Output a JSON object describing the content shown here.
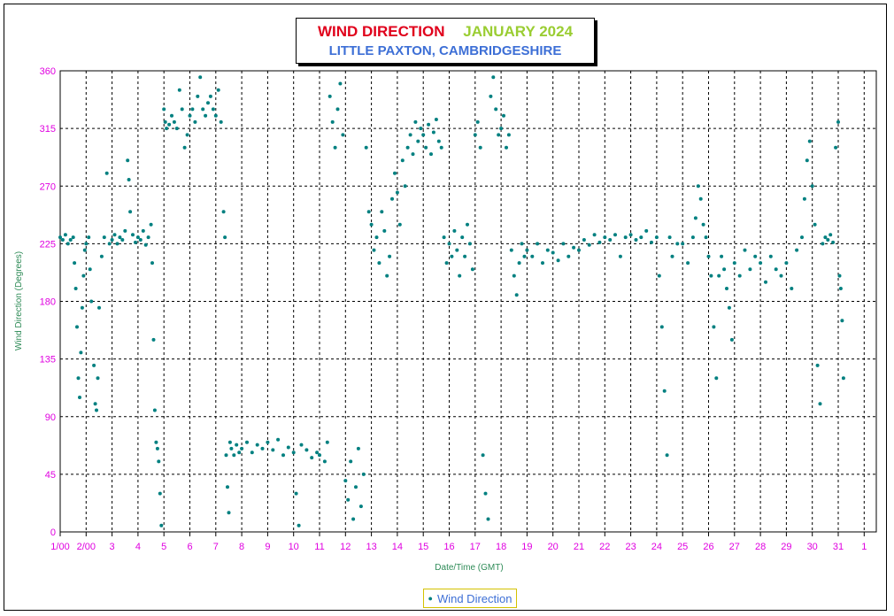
{
  "title": {
    "main": "WIND DIRECTION",
    "date": "JANUARY  2024",
    "subtitle": "LITTLE PAXTON, CAMBRIDGESHIRE"
  },
  "legend": {
    "label": "Wind Direction"
  },
  "colors": {
    "series": "#008080",
    "tick_labels": "#e000e0",
    "axis_titles": "#2e8b57",
    "title_main": "#e0001b",
    "title_date": "#9acd32",
    "subtitle": "#3d6fd6",
    "grid": "#000000"
  },
  "chart_data": {
    "type": "scatter",
    "title": "WIND DIRECTION   JANUARY  2024",
    "subtitle": "LITTLE PAXTON, CAMBRIDGESHIRE",
    "xlabel": "Date/Time (GMT)",
    "ylabel": "Wind Direction (Degrees)",
    "ylim": [
      0,
      360
    ],
    "yticks": [
      0,
      45,
      90,
      135,
      180,
      225,
      270,
      315,
      360
    ],
    "xlim": [
      1,
      32.3
    ],
    "xticks": [
      "1/00",
      "2/00",
      "3",
      "4",
      "5",
      "6",
      "7",
      "8",
      "9",
      "10",
      "11",
      "12",
      "13",
      "14",
      "15",
      "16",
      "17",
      "18",
      "19",
      "20",
      "21",
      "22",
      "23",
      "24",
      "25",
      "26",
      "27",
      "28",
      "29",
      "30",
      "31",
      "1"
    ],
    "grid": true,
    "legend_position": "bottom-center",
    "series": [
      {
        "name": "Wind Direction",
        "note": "x values are days of January 2024 (day + fraction); y values are degrees",
        "points": [
          [
            1.0,
            230
          ],
          [
            1.1,
            228
          ],
          [
            1.2,
            232
          ],
          [
            1.3,
            225
          ],
          [
            1.4,
            228
          ],
          [
            1.5,
            230
          ],
          [
            1.55,
            210
          ],
          [
            1.6,
            190
          ],
          [
            1.65,
            160
          ],
          [
            1.7,
            120
          ],
          [
            1.75,
            105
          ],
          [
            1.8,
            140
          ],
          [
            1.85,
            175
          ],
          [
            1.9,
            200
          ],
          [
            1.95,
            220
          ],
          [
            2.0,
            225
          ],
          [
            2.1,
            230
          ],
          [
            2.15,
            205
          ],
          [
            2.2,
            180
          ],
          [
            2.3,
            130
          ],
          [
            2.35,
            100
          ],
          [
            2.4,
            95
          ],
          [
            2.45,
            120
          ],
          [
            2.5,
            175
          ],
          [
            2.6,
            215
          ],
          [
            2.7,
            230
          ],
          [
            2.8,
            280
          ],
          [
            2.9,
            225
          ],
          [
            3.0,
            228
          ],
          [
            3.1,
            232
          ],
          [
            3.2,
            225
          ],
          [
            3.3,
            230
          ],
          [
            3.4,
            228
          ],
          [
            3.5,
            235
          ],
          [
            3.6,
            290
          ],
          [
            3.65,
            275
          ],
          [
            3.7,
            250
          ],
          [
            3.8,
            232
          ],
          [
            3.9,
            226
          ],
          [
            4.0,
            230
          ],
          [
            4.1,
            228
          ],
          [
            4.2,
            235
          ],
          [
            4.3,
            224
          ],
          [
            4.4,
            230
          ],
          [
            4.5,
            240
          ],
          [
            4.55,
            210
          ],
          [
            4.6,
            150
          ],
          [
            4.65,
            95
          ],
          [
            4.7,
            70
          ],
          [
            4.75,
            65
          ],
          [
            4.8,
            55
          ],
          [
            4.85,
            30
          ],
          [
            4.9,
            5
          ],
          [
            5.0,
            330
          ],
          [
            5.05,
            320
          ],
          [
            5.1,
            315
          ],
          [
            5.2,
            318
          ],
          [
            5.3,
            325
          ],
          [
            5.4,
            320
          ],
          [
            5.5,
            315
          ],
          [
            5.6,
            345
          ],
          [
            5.7,
            330
          ],
          [
            5.8,
            300
          ],
          [
            5.9,
            310
          ],
          [
            6.0,
            325
          ],
          [
            6.1,
            330
          ],
          [
            6.2,
            320
          ],
          [
            6.3,
            340
          ],
          [
            6.4,
            355
          ],
          [
            6.5,
            330
          ],
          [
            6.6,
            325
          ],
          [
            6.7,
            335
          ],
          [
            6.8,
            340
          ],
          [
            6.9,
            330
          ],
          [
            7.0,
            325
          ],
          [
            7.1,
            345
          ],
          [
            7.2,
            320
          ],
          [
            7.3,
            250
          ],
          [
            7.35,
            230
          ],
          [
            7.4,
            60
          ],
          [
            7.45,
            35
          ],
          [
            7.5,
            15
          ],
          [
            7.55,
            70
          ],
          [
            7.6,
            65
          ],
          [
            7.7,
            60
          ],
          [
            7.8,
            68
          ],
          [
            7.9,
            62
          ],
          [
            8.0,
            65
          ],
          [
            8.2,
            70
          ],
          [
            8.4,
            62
          ],
          [
            8.6,
            68
          ],
          [
            8.8,
            65
          ],
          [
            9.0,
            70
          ],
          [
            9.2,
            64
          ],
          [
            9.4,
            72
          ],
          [
            9.6,
            60
          ],
          [
            9.8,
            66
          ],
          [
            10.0,
            62
          ],
          [
            10.1,
            30
          ],
          [
            10.2,
            5
          ],
          [
            10.3,
            68
          ],
          [
            10.5,
            64
          ],
          [
            10.7,
            58
          ],
          [
            10.9,
            62
          ],
          [
            11.0,
            60
          ],
          [
            11.2,
            55
          ],
          [
            11.3,
            70
          ],
          [
            11.4,
            340
          ],
          [
            11.5,
            320
          ],
          [
            11.6,
            300
          ],
          [
            11.7,
            330
          ],
          [
            11.8,
            350
          ],
          [
            11.9,
            310
          ],
          [
            12.0,
            40
          ],
          [
            12.1,
            25
          ],
          [
            12.2,
            55
          ],
          [
            12.3,
            10
          ],
          [
            12.4,
            35
          ],
          [
            12.5,
            65
          ],
          [
            12.6,
            20
          ],
          [
            12.7,
            45
          ],
          [
            12.8,
            300
          ],
          [
            12.9,
            250
          ],
          [
            13.0,
            240
          ],
          [
            13.1,
            220
          ],
          [
            13.2,
            230
          ],
          [
            13.3,
            210
          ],
          [
            13.4,
            250
          ],
          [
            13.5,
            235
          ],
          [
            13.6,
            200
          ],
          [
            13.7,
            215
          ],
          [
            13.8,
            260
          ],
          [
            13.9,
            280
          ],
          [
            14.0,
            265
          ],
          [
            14.1,
            240
          ],
          [
            14.2,
            290
          ],
          [
            14.3,
            270
          ],
          [
            14.4,
            300
          ],
          [
            14.5,
            310
          ],
          [
            14.6,
            295
          ],
          [
            14.7,
            320
          ],
          [
            14.8,
            305
          ],
          [
            14.9,
            315
          ],
          [
            15.0,
            310
          ],
          [
            15.1,
            300
          ],
          [
            15.2,
            318
          ],
          [
            15.3,
            295
          ],
          [
            15.4,
            312
          ],
          [
            15.5,
            322
          ],
          [
            15.6,
            305
          ],
          [
            15.7,
            300
          ],
          [
            15.8,
            230
          ],
          [
            15.9,
            210
          ],
          [
            16.0,
            225
          ],
          [
            16.1,
            215
          ],
          [
            16.2,
            235
          ],
          [
            16.3,
            220
          ],
          [
            16.4,
            200
          ],
          [
            16.5,
            230
          ],
          [
            16.6,
            215
          ],
          [
            16.7,
            240
          ],
          [
            16.8,
            225
          ],
          [
            16.9,
            205
          ],
          [
            17.0,
            310
          ],
          [
            17.1,
            320
          ],
          [
            17.2,
            300
          ],
          [
            17.3,
            60
          ],
          [
            17.4,
            30
          ],
          [
            17.5,
            10
          ],
          [
            17.6,
            340
          ],
          [
            17.7,
            355
          ],
          [
            17.8,
            330
          ],
          [
            17.9,
            310
          ],
          [
            18.0,
            315
          ],
          [
            18.1,
            325
          ],
          [
            18.2,
            300
          ],
          [
            18.3,
            310
          ],
          [
            18.4,
            220
          ],
          [
            18.5,
            200
          ],
          [
            18.6,
            185
          ],
          [
            18.7,
            210
          ],
          [
            18.8,
            225
          ],
          [
            18.9,
            215
          ],
          [
            19.0,
            220
          ],
          [
            19.2,
            215
          ],
          [
            19.4,
            225
          ],
          [
            19.6,
            210
          ],
          [
            19.8,
            220
          ],
          [
            20.0,
            218
          ],
          [
            20.2,
            212
          ],
          [
            20.4,
            225
          ],
          [
            20.6,
            215
          ],
          [
            20.8,
            222
          ],
          [
            21.0,
            220
          ],
          [
            21.2,
            228
          ],
          [
            21.4,
            224
          ],
          [
            21.6,
            232
          ],
          [
            21.8,
            226
          ],
          [
            22.0,
            230
          ],
          [
            22.2,
            228
          ],
          [
            22.4,
            232
          ],
          [
            22.6,
            215
          ],
          [
            22.8,
            230
          ],
          [
            23.0,
            232
          ],
          [
            23.2,
            228
          ],
          [
            23.4,
            230
          ],
          [
            23.6,
            235
          ],
          [
            23.8,
            226
          ],
          [
            24.0,
            230
          ],
          [
            24.1,
            200
          ],
          [
            24.2,
            160
          ],
          [
            24.3,
            110
          ],
          [
            24.4,
            60
          ],
          [
            24.5,
            230
          ],
          [
            24.6,
            215
          ],
          [
            24.8,
            225
          ],
          [
            25.0,
            225
          ],
          [
            25.2,
            210
          ],
          [
            25.4,
            230
          ],
          [
            25.5,
            245
          ],
          [
            25.6,
            270
          ],
          [
            25.7,
            260
          ],
          [
            25.8,
            240
          ],
          [
            25.9,
            230
          ],
          [
            26.0,
            215
          ],
          [
            26.1,
            200
          ],
          [
            26.2,
            160
          ],
          [
            26.3,
            120
          ],
          [
            26.4,
            200
          ],
          [
            26.5,
            215
          ],
          [
            26.6,
            205
          ],
          [
            26.7,
            190
          ],
          [
            26.8,
            175
          ],
          [
            26.9,
            150
          ],
          [
            27.0,
            210
          ],
          [
            27.2,
            200
          ],
          [
            27.4,
            220
          ],
          [
            27.6,
            205
          ],
          [
            27.8,
            215
          ],
          [
            28.0,
            210
          ],
          [
            28.2,
            195
          ],
          [
            28.4,
            215
          ],
          [
            28.6,
            205
          ],
          [
            28.8,
            200
          ],
          [
            29.0,
            210
          ],
          [
            29.2,
            190
          ],
          [
            29.4,
            220
          ],
          [
            29.6,
            230
          ],
          [
            29.7,
            260
          ],
          [
            29.8,
            290
          ],
          [
            29.9,
            305
          ],
          [
            30.0,
            270
          ],
          [
            30.1,
            240
          ],
          [
            30.2,
            130
          ],
          [
            30.3,
            100
          ],
          [
            30.4,
            225
          ],
          [
            30.5,
            230
          ],
          [
            30.6,
            228
          ],
          [
            30.7,
            232
          ],
          [
            30.8,
            226
          ],
          [
            30.9,
            300
          ],
          [
            31.0,
            320
          ],
          [
            31.05,
            200
          ],
          [
            31.1,
            190
          ],
          [
            31.15,
            165
          ],
          [
            31.2,
            120
          ]
        ]
      }
    ]
  }
}
